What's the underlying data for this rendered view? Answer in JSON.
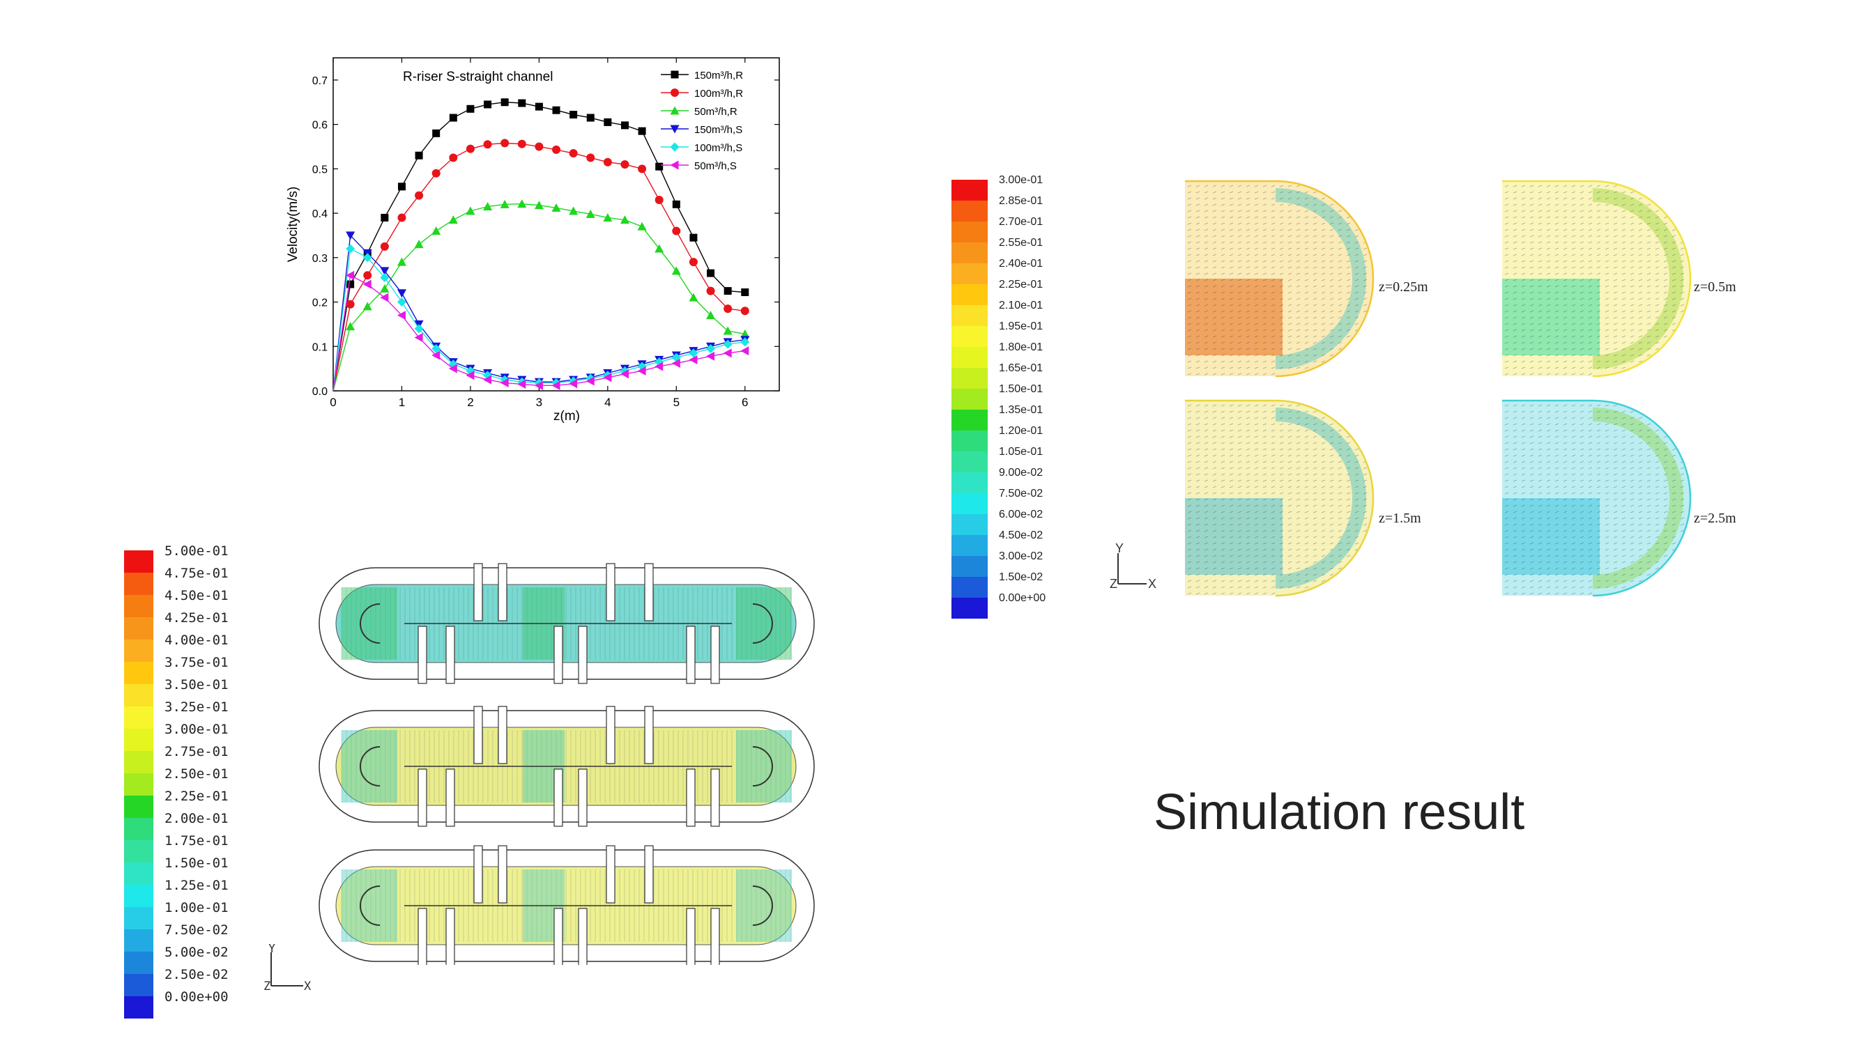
{
  "slide": {
    "caption": "Simulation result"
  },
  "chart_data": {
    "type": "line",
    "title": "R-riser  S-straight channel",
    "xlabel": "z(m)",
    "ylabel": "Velocity(m/s)",
    "xlim": [
      0,
      6.5
    ],
    "ylim": [
      0,
      0.75
    ],
    "xticks": [
      "0",
      "1",
      "2",
      "3",
      "4",
      "5",
      "6"
    ],
    "yticks": [
      "0.0",
      "0.1",
      "0.2",
      "0.3",
      "0.4",
      "0.5",
      "0.6",
      "0.7"
    ],
    "legend_position": "top-right",
    "x": [
      0,
      0.25,
      0.5,
      0.75,
      1.0,
      1.25,
      1.5,
      1.75,
      2.0,
      2.25,
      2.5,
      2.75,
      3.0,
      3.25,
      3.5,
      3.75,
      4.0,
      4.25,
      4.5,
      4.75,
      5.0,
      5.25,
      5.5,
      5.75,
      6.0
    ],
    "series": [
      {
        "name": "150m³/h,R",
        "color": "#000000",
        "marker": "square",
        "values": [
          0,
          0.24,
          0.31,
          0.39,
          0.46,
          0.53,
          0.58,
          0.615,
          0.635,
          0.645,
          0.65,
          0.648,
          0.64,
          0.632,
          0.622,
          0.615,
          0.605,
          0.598,
          0.585,
          0.505,
          0.42,
          0.345,
          0.265,
          0.225,
          0.222
        ]
      },
      {
        "name": "100m³/h,R",
        "color": "#e8141a",
        "marker": "circle",
        "values": [
          0,
          0.195,
          0.26,
          0.325,
          0.39,
          0.44,
          0.49,
          0.525,
          0.545,
          0.555,
          0.558,
          0.556,
          0.55,
          0.543,
          0.535,
          0.525,
          0.515,
          0.51,
          0.5,
          0.43,
          0.36,
          0.29,
          0.225,
          0.185,
          0.18
        ]
      },
      {
        "name": "50m³/h,R",
        "color": "#1ed71e",
        "marker": "triangle-up",
        "values": [
          0,
          0.145,
          0.19,
          0.23,
          0.29,
          0.33,
          0.36,
          0.385,
          0.405,
          0.415,
          0.42,
          0.421,
          0.418,
          0.412,
          0.405,
          0.398,
          0.39,
          0.385,
          0.37,
          0.32,
          0.27,
          0.21,
          0.17,
          0.135,
          0.128
        ]
      },
      {
        "name": "150m³/h,S",
        "color": "#1414d7",
        "marker": "triangle-down",
        "values": [
          0,
          0.35,
          0.31,
          0.27,
          0.22,
          0.15,
          0.1,
          0.065,
          0.05,
          0.04,
          0.03,
          0.025,
          0.02,
          0.02,
          0.025,
          0.03,
          0.04,
          0.05,
          0.06,
          0.07,
          0.08,
          0.09,
          0.1,
          0.11,
          0.115
        ]
      },
      {
        "name": "100m³/h,S",
        "color": "#19e6e6",
        "marker": "diamond",
        "values": [
          0,
          0.32,
          0.3,
          0.255,
          0.2,
          0.14,
          0.095,
          0.06,
          0.045,
          0.035,
          0.025,
          0.02,
          0.018,
          0.018,
          0.022,
          0.028,
          0.035,
          0.045,
          0.055,
          0.065,
          0.075,
          0.085,
          0.095,
          0.105,
          0.11
        ]
      },
      {
        "name": "50m³/h,S",
        "color": "#e619e6",
        "marker": "triangle-left",
        "values": [
          0,
          0.26,
          0.24,
          0.21,
          0.17,
          0.12,
          0.08,
          0.05,
          0.035,
          0.025,
          0.018,
          0.015,
          0.012,
          0.012,
          0.016,
          0.022,
          0.03,
          0.038,
          0.045,
          0.055,
          0.062,
          0.07,
          0.078,
          0.085,
          0.09
        ]
      }
    ]
  },
  "colorbar_left": {
    "labels": [
      "5.00e-01",
      "4.75e-01",
      "4.50e-01",
      "4.25e-01",
      "4.00e-01",
      "3.75e-01",
      "3.50e-01",
      "3.25e-01",
      "3.00e-01",
      "2.75e-01",
      "2.50e-01",
      "2.25e-01",
      "2.00e-01",
      "1.75e-01",
      "1.50e-01",
      "1.25e-01",
      "1.00e-01",
      "7.50e-02",
      "5.00e-02",
      "2.50e-02",
      "0.00e+00"
    ],
    "colors": [
      "#ee1111",
      "#f55c10",
      "#f67d12",
      "#f7951b",
      "#fbaf20",
      "#ffc80f",
      "#fbe128",
      "#f8f52c",
      "#e4f520",
      "#c7f01e",
      "#a3ea1e",
      "#26d626",
      "#2fdc7c",
      "#34e09e",
      "#2ee4c4",
      "#1ee8ea",
      "#27cde6",
      "#22aae2",
      "#1c86da",
      "#1b5ad8",
      "#1a18d6"
    ]
  },
  "colorbar_right": {
    "labels": [
      "3.00e-01",
      "2.85e-01",
      "2.70e-01",
      "2.55e-01",
      "2.40e-01",
      "2.25e-01",
      "2.10e-01",
      "1.95e-01",
      "1.80e-01",
      "1.65e-01",
      "1.50e-01",
      "1.35e-01",
      "1.20e-01",
      "1.05e-01",
      "9.00e-02",
      "7.50e-02",
      "6.00e-02",
      "4.50e-02",
      "3.00e-02",
      "1.50e-02",
      "0.00e+00"
    ],
    "colors": [
      "#ee1111",
      "#f55c10",
      "#f67d12",
      "#f7951b",
      "#fbaf20",
      "#ffc80f",
      "#fbe128",
      "#f8f52c",
      "#e4f520",
      "#c7f01e",
      "#a3ea1e",
      "#26d626",
      "#2fdc7c",
      "#34e09e",
      "#2ee4c4",
      "#1ee8ea",
      "#27cde6",
      "#22aae2",
      "#1c86da",
      "#1b5ad8",
      "#1a18d6"
    ]
  },
  "axes_triad": {
    "y": "Y",
    "z": "Z",
    "x": "X"
  },
  "sections": [
    {
      "label": "z=0.25m",
      "core": "#e86a1a",
      "outer": "#f3c531",
      "swirl": "#44c6c6"
    },
    {
      "label": "z=0.5m",
      "core": "#37dca2",
      "outer": "#f1e23a",
      "swirl": "#9bd83a"
    },
    {
      "label": "z=1.5m",
      "core": "#4dbfd3",
      "outer": "#e7d63a",
      "swirl": "#3fc0c8"
    },
    {
      "label": "z=2.5m",
      "core": "#3cc7dc",
      "outer": "#3fcfd8",
      "swirl": "#8bd64a"
    }
  ],
  "channels": [
    {
      "field": "#7ad9d0",
      "strips": "#39c66a"
    },
    {
      "field": "#e9ec8c",
      "strips": "#3fc9b7"
    },
    {
      "field": "#eef192",
      "strips": "#55cfc3"
    }
  ]
}
